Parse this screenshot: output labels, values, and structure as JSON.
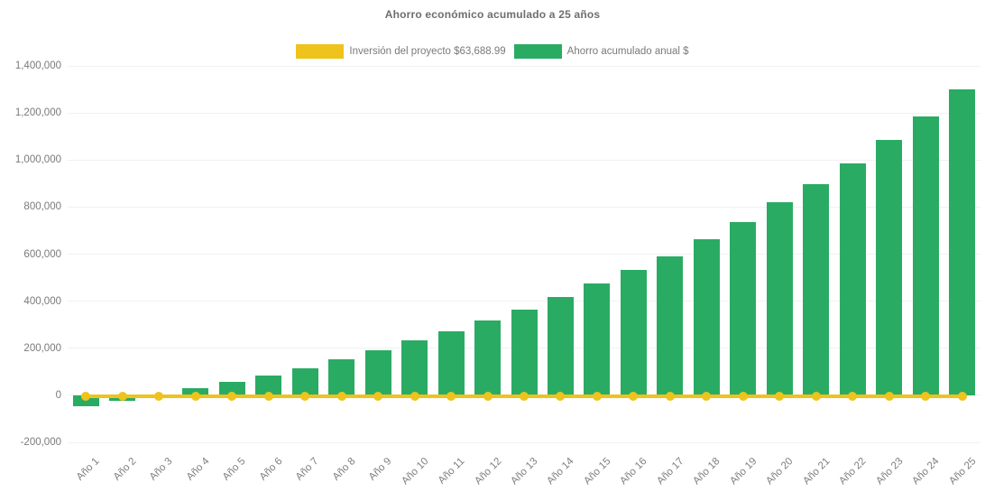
{
  "chart_data": {
    "type": "bar",
    "title": "Ahorro económico acumulado a 25 años",
    "categories": [
      "Año 1",
      "Año 2",
      "Año 3",
      "Año 4",
      "Año 5",
      "Año 6",
      "Año 7",
      "Año 8",
      "Año 9",
      "Año 10",
      "Año 11",
      "Año 12",
      "Año 13",
      "Año 14",
      "Año 15",
      "Año 16",
      "Año 17",
      "Año 18",
      "Año 19",
      "Año 20",
      "Año 21",
      "Año 22",
      "Año 23",
      "Año 24",
      "Año 25"
    ],
    "series": [
      {
        "name": "Inversión del proyecto $63,688.99",
        "render_as": "line-with-markers",
        "color": "#EEC31B",
        "values": [
          0,
          0,
          0,
          0,
          0,
          0,
          0,
          0,
          0,
          0,
          0,
          0,
          0,
          0,
          0,
          0,
          0,
          0,
          0,
          0,
          0,
          0,
          0,
          0,
          0
        ]
      },
      {
        "name": "Ahorro acumulado anual $",
        "render_as": "bar",
        "color": "#2AAB63",
        "values": [
          -48000,
          -25000,
          5000,
          30000,
          57000,
          85000,
          115000,
          152000,
          190000,
          232000,
          271000,
          318000,
          364000,
          419000,
          474000,
          533000,
          590000,
          665000,
          736000,
          819000,
          899000,
          987000,
          1084000,
          1186000,
          1299000
        ]
      }
    ],
    "xlabel": "",
    "ylabel": "",
    "ylim": [
      -200000,
      1400000
    ],
    "ytick_values": [
      1400000,
      1200000,
      1000000,
      800000,
      600000,
      400000,
      200000,
      0,
      -200000
    ],
    "ytick_labels": [
      "1,400,000",
      "1,200,000",
      "1,000,000",
      "800,000",
      "600,000",
      "400,000",
      "200,000",
      "0",
      "-200,000"
    ],
    "grid": "faint horizontal gridlines every 200,000",
    "legend_position": "top center",
    "text_color": "#7a7a7a"
  }
}
